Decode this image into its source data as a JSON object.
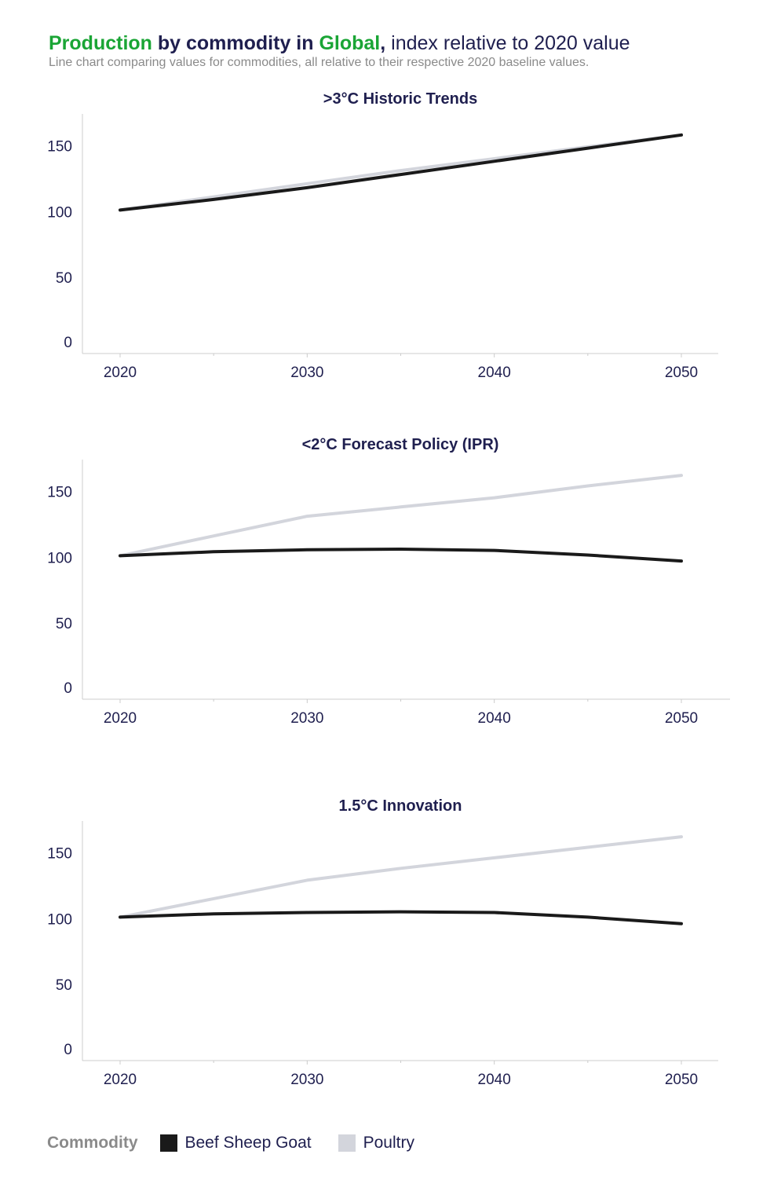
{
  "header": {
    "title_part1": "Production",
    "title_part2": " by commodity in ",
    "title_part3": "Global",
    "title_part4": ",",
    "title_part5": " index relative to 2020 value",
    "subtitle": "Line chart comparing values for commodities, all relative to their respective 2020 baseline values."
  },
  "legend": {
    "title": "Commodity",
    "items": [
      {
        "label": "Beef Sheep Goat",
        "color": "#1a1a1a"
      },
      {
        "label": "Poultry",
        "color": "#d3d5dc"
      }
    ]
  },
  "chart_data": [
    {
      "type": "line",
      "title": ">3°C Historic Trends",
      "x": [
        2020,
        2025,
        2030,
        2035,
        2040,
        2045,
        2050
      ],
      "xticks": [
        "2020",
        "2030",
        "2040",
        "2050"
      ],
      "yticks": [
        "0",
        "50",
        "100",
        "150"
      ],
      "ylim": [
        0,
        170
      ],
      "series": [
        {
          "name": "Poultry",
          "color": "#d3d5dc",
          "values": [
            100,
            110,
            120,
            130,
            139,
            148,
            157
          ]
        },
        {
          "name": "Beef Sheep Goat",
          "color": "#1a1a1a",
          "values": [
            100,
            108,
            117,
            127,
            137,
            147,
            157
          ]
        }
      ]
    },
    {
      "type": "line",
      "title": "<2°C Forecast Policy (IPR)",
      "x": [
        2020,
        2025,
        2030,
        2035,
        2040,
        2045,
        2050
      ],
      "xticks": [
        "2020",
        "2030",
        "2040",
        "2050"
      ],
      "yticks": [
        "0",
        "50",
        "100",
        "150"
      ],
      "ylim": [
        0,
        170
      ],
      "series": [
        {
          "name": "Poultry",
          "color": "#d3d5dc",
          "values": [
            100,
            115,
            130,
            137,
            144,
            153,
            161
          ]
        },
        {
          "name": "Beef Sheep Goat",
          "color": "#1a1a1a",
          "values": [
            100,
            103,
            104.5,
            105,
            104,
            100.5,
            96
          ]
        }
      ]
    },
    {
      "type": "line",
      "title": "1.5°C Innovation",
      "x": [
        2020,
        2025,
        2030,
        2035,
        2040,
        2045,
        2050
      ],
      "xticks": [
        "2020",
        "2030",
        "2040",
        "2050"
      ],
      "yticks": [
        "0",
        "50",
        "100",
        "150"
      ],
      "ylim": [
        0,
        170
      ],
      "series": [
        {
          "name": "Poultry",
          "color": "#d3d5dc",
          "values": [
            100,
            114,
            128,
            137,
            145,
            153,
            161
          ]
        },
        {
          "name": "Beef Sheep Goat",
          "color": "#1a1a1a",
          "values": [
            100,
            102.5,
            103.5,
            104,
            103.5,
            100,
            95
          ]
        }
      ]
    }
  ]
}
